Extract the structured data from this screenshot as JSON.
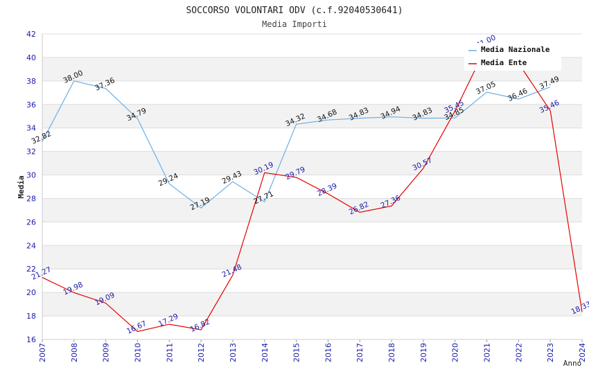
{
  "chart_data": {
    "type": "line",
    "title": "SOCCORSO VOLONTARI ODV (c.f.92040530641)",
    "subtitle": "Media Importi",
    "ylabel": "Media",
    "xlabel": "Anno",
    "ylim": [
      16,
      42
    ],
    "yticks": [
      16,
      18,
      20,
      22,
      24,
      26,
      28,
      30,
      32,
      34,
      36,
      38,
      40,
      42
    ],
    "x": [
      2007,
      2008,
      2009,
      2010,
      2011,
      2012,
      2013,
      2014,
      2015,
      2016,
      2017,
      2018,
      2019,
      2020,
      2021,
      2022,
      2023,
      2024
    ],
    "grid": "horizontal alternating bands",
    "legend_position": "top-right",
    "series": [
      {
        "name": "Media Nazionale",
        "color": "#6aaee6",
        "x": [
          2007,
          2008,
          2009,
          2010,
          2011,
          2012,
          2013,
          2014,
          2015,
          2016,
          2017,
          2018,
          2019,
          2020,
          2021,
          2022,
          2023
        ],
        "values": [
          32.82,
          38.0,
          37.36,
          34.79,
          29.24,
          27.19,
          29.43,
          27.71,
          34.32,
          34.68,
          34.83,
          34.94,
          34.83,
          34.85,
          37.05,
          36.46,
          37.49
        ],
        "labels": [
          "32.82",
          "38.00",
          "37.36",
          "34.79",
          "29.24",
          "27.19",
          "29.43",
          "27.71",
          "34.32",
          "34.68",
          "34.83",
          "34.94",
          "34.83",
          "34.85",
          "37.05",
          "36.46",
          "37.49"
        ]
      },
      {
        "name": "Media Ente",
        "color": "#e60000",
        "x": [
          2007,
          2008,
          2009,
          2010,
          2011,
          2012,
          2013,
          2014,
          2015,
          2016,
          2017,
          2018,
          2019,
          2020,
          2021,
          2022,
          2023,
          2024
        ],
        "values": [
          21.27,
          19.98,
          19.09,
          16.67,
          17.29,
          16.82,
          21.48,
          30.19,
          29.79,
          28.39,
          26.82,
          27.36,
          30.57,
          35.45,
          41.0,
          39.5,
          35.46,
          18.33
        ],
        "labels": [
          "21.27",
          "19.98",
          "19.09",
          "16.67",
          "17.29",
          "16.82",
          "21.48",
          "30.19",
          "29.79",
          "28.39",
          "26.82",
          "27.36",
          "30.57",
          "35.45",
          "41.00",
          "",
          "35.46",
          "18.33"
        ]
      }
    ]
  }
}
